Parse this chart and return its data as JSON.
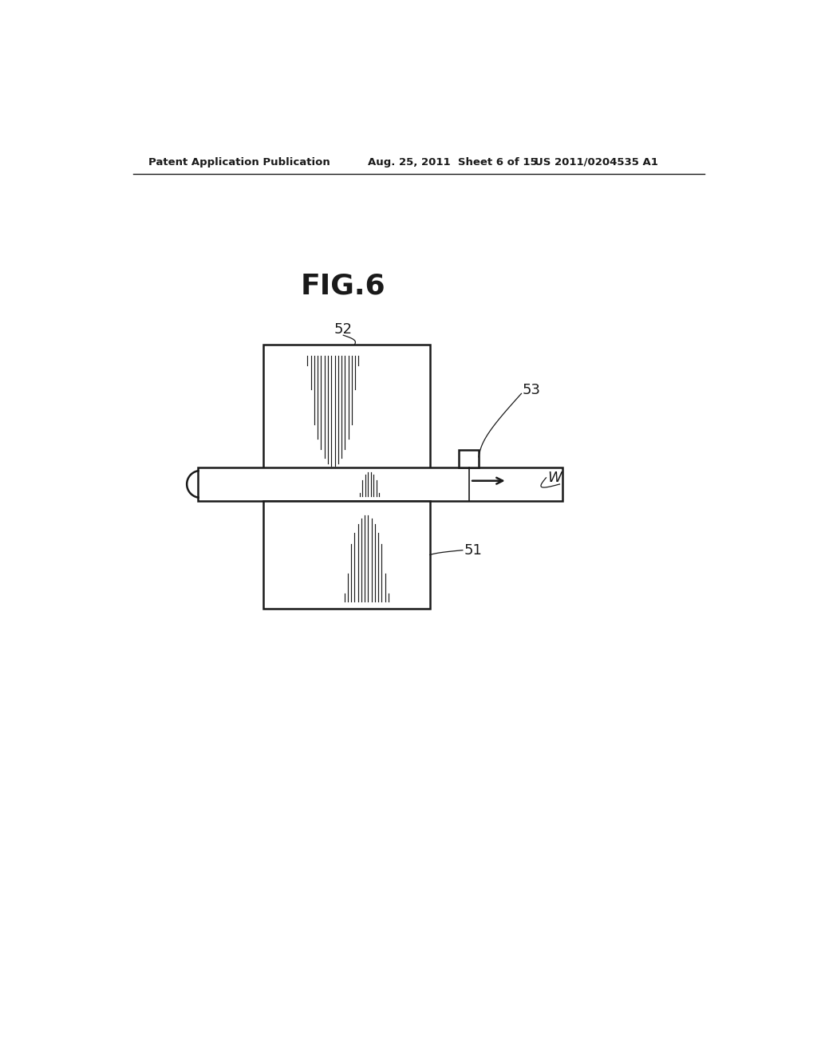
{
  "bg_color": "#ffffff",
  "header_text": "Patent Application Publication",
  "header_date": "Aug. 25, 2011  Sheet 6 of 15",
  "header_patent": "US 2011/0204535 A1",
  "fig_label": "FIG.6",
  "label_52": "52",
  "label_53": "53",
  "label_51": "51",
  "label_W": "W",
  "line_color": "#1a1a1a",
  "lw": 1.8
}
